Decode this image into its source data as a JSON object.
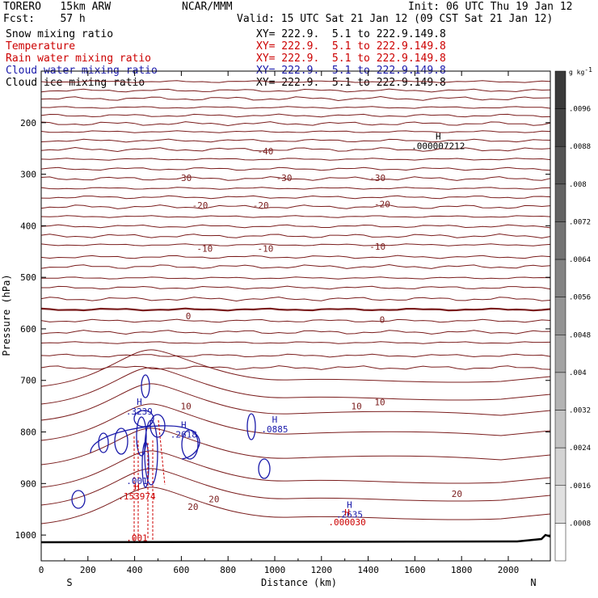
{
  "header": {
    "model": "TORERO   15km ARW",
    "center": "NCAR/MMM",
    "init": "Init: 06 UTC Thu 19 Jan 12",
    "fcst": "Fcst:    57 h",
    "valid": "Valid: 15 UTC Sat 21 Jan 12 (09 CST Sat 21 Jan 12)"
  },
  "fields": [
    {
      "label": "Snow mixing ratio",
      "xy": "XY= 222.9.  5.1 to 222.9.149.8",
      "color": "#000000"
    },
    {
      "label": "Temperature",
      "xy": "XY= 222.9.  5.1 to 222.9.149.8",
      "color": "#cc0000"
    },
    {
      "label": "Rain water mixing ratio",
      "xy": "XY= 222.9.  5.1 to 222.9.149.8",
      "color": "#cc0000"
    },
    {
      "label": "Cloud water mixing ratio",
      "xy": "XY= 222.9.  5.1 to 222.9.149.8",
      "color": "#1a1aaa"
    },
    {
      "label": "Cloud ice mixing ratio",
      "xy": "XY= 222.9.  5.1 to 222.9.149.8",
      "color": "#000000"
    }
  ],
  "chart_data": {
    "type": "contour",
    "xlabel": "Distance (km)",
    "ylabel": "Pressure (hPa)",
    "xlim": [
      0,
      2180
    ],
    "ylim": [
      1050,
      100
    ],
    "xticks": [
      0,
      200,
      400,
      600,
      800,
      1000,
      1200,
      1400,
      1600,
      1800,
      2000
    ],
    "yticks": [
      200,
      300,
      400,
      500,
      600,
      700,
      800,
      900,
      1000
    ],
    "endpoints": {
      "left": "S",
      "right": "N"
    },
    "temperature_labels": [
      {
        "text": "-40",
        "x": 960,
        "p": 255
      },
      {
        "text": "-30",
        "x": 610,
        "p": 307
      },
      {
        "text": "-30",
        "x": 1040,
        "p": 307
      },
      {
        "text": "-30",
        "x": 1440,
        "p": 307
      },
      {
        "text": "-20",
        "x": 680,
        "p": 360
      },
      {
        "text": "-20",
        "x": 940,
        "p": 360
      },
      {
        "text": "-20",
        "x": 1460,
        "p": 358
      },
      {
        "text": "-10",
        "x": 700,
        "p": 444
      },
      {
        "text": "-10",
        "x": 960,
        "p": 444
      },
      {
        "text": "-10",
        "x": 1440,
        "p": 440
      },
      {
        "text": "0",
        "x": 630,
        "p": 575
      },
      {
        "text": "0",
        "x": 1460,
        "p": 582
      },
      {
        "text": "10",
        "x": 620,
        "p": 750
      },
      {
        "text": "10",
        "x": 1350,
        "p": 750
      },
      {
        "text": "10",
        "x": 1450,
        "p": 742
      },
      {
        "text": "20",
        "x": 650,
        "p": 945
      },
      {
        "text": "20",
        "x": 740,
        "p": 930
      },
      {
        "text": "20",
        "x": 1780,
        "p": 920
      }
    ],
    "maxima_labels": [
      {
        "mark": "H",
        "value": ".000007212",
        "x": 1700,
        "p": 240,
        "color": "#000000"
      },
      {
        "mark": "H",
        "value": ".2618",
        "x": 610,
        "p": 800,
        "color": "#1a1aaa"
      },
      {
        "mark": "H",
        "value": ".0885",
        "x": 1000,
        "p": 790,
        "color": "#1a1aaa"
      },
      {
        "mark": "H",
        "value": ".3239",
        "x": 420,
        "p": 755,
        "color": "#1a1aaa"
      },
      {
        "mark": "H",
        "value": ".2635",
        "x": 1320,
        "p": 955,
        "color": "#1a1aaa"
      },
      {
        "mark": "H",
        "value": ".153974",
        "x": 410,
        "p": 920,
        "color": "#cc0000"
      },
      {
        "mark": "H",
        "value": ".000030",
        "x": 1310,
        "p": 970,
        "color": "#cc0000"
      }
    ],
    "small_labels": [
      {
        "text": ".001",
        "x": 410,
        "p": 895,
        "color": "#1a1aaa"
      },
      {
        "text": ".001",
        "x": 410,
        "p": 1005,
        "color": "#cc0000"
      }
    ],
    "colorbar": {
      "unit": "g kg",
      "unit_exp": "-1",
      "labels": [
        ".0096",
        ".0088",
        ".008",
        ".0072",
        ".0064",
        ".0056",
        ".0048",
        ".004",
        ".0032",
        ".0024",
        ".0016",
        ".0008"
      ],
      "colors": [
        "#3a3a3a",
        "#444444",
        "#545454",
        "#636363",
        "#737373",
        "#838383",
        "#939393",
        "#a3a3a3",
        "#b3b3b3",
        "#c3c3c3",
        "#d3d3d3",
        "#e0e0e0",
        "#ffffff"
      ]
    }
  }
}
